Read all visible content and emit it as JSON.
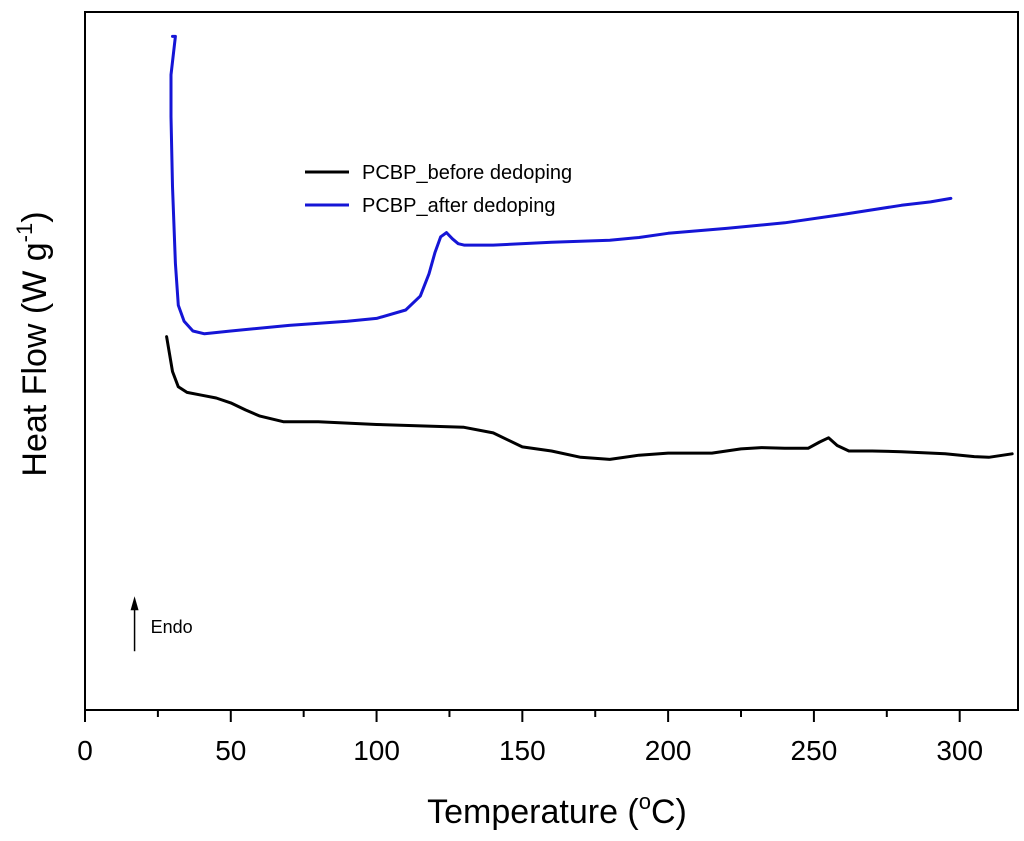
{
  "chart_data": {
    "type": "line",
    "title": "",
    "xlabel": "Temperature (",
    "xlabel_sup": "o",
    "xlabel_tail": "C)",
    "ylabel": "Heat Flow (W g",
    "ylabel_sup": "-1",
    "ylabel_tail": ")",
    "xlim": [
      0,
      320
    ],
    "ylim": [
      0,
      100
    ],
    "xticks": [
      0,
      50,
      100,
      150,
      200,
      250,
      300
    ],
    "y_tick_labels_shown": false,
    "grid": false,
    "legend_position": "upper-center",
    "annotation": {
      "text": "Endo",
      "x": 17,
      "y": 12,
      "arrow": "up"
    },
    "series": [
      {
        "name": "PCBP_before dedoping",
        "color": "#000000",
        "x": [
          28,
          30,
          32,
          35,
          40,
          45,
          50,
          55,
          60,
          68,
          80,
          100,
          130,
          140,
          150,
          160,
          170,
          180,
          190,
          200,
          215,
          225,
          232,
          240,
          248,
          252,
          255,
          258,
          262,
          270,
          280,
          295,
          305,
          310,
          318
        ],
        "y": [
          53.5,
          48.5,
          46.3,
          45.5,
          45.1,
          44.7,
          44.0,
          43.0,
          42.1,
          41.3,
          41.3,
          40.9,
          40.5,
          39.7,
          37.7,
          37.1,
          36.2,
          35.9,
          36.5,
          36.8,
          36.8,
          37.4,
          37.6,
          37.5,
          37.5,
          38.4,
          39.0,
          37.9,
          37.1,
          37.1,
          37.0,
          36.7,
          36.3,
          36.2,
          36.7
        ]
      },
      {
        "name": "PCBP_after dedoping",
        "color": "#1515d6",
        "x": [
          30,
          31,
          29.5,
          29.5,
          30,
          31,
          32,
          34,
          37,
          41,
          50,
          70,
          90,
          100,
          110,
          115,
          118,
          120,
          122,
          124,
          126,
          128,
          130,
          140,
          160,
          180,
          190,
          200,
          220,
          240,
          260,
          280,
          290,
          297
        ],
        "y": [
          96.5,
          96.5,
          91.0,
          85.0,
          75.0,
          64.0,
          58.0,
          55.7,
          54.3,
          53.9,
          54.3,
          55.1,
          55.7,
          56.1,
          57.3,
          59.3,
          62.5,
          65.5,
          67.8,
          68.4,
          67.5,
          66.8,
          66.6,
          66.6,
          67.0,
          67.3,
          67.7,
          68.3,
          69.0,
          69.8,
          71.0,
          72.3,
          72.8,
          73.3
        ]
      }
    ]
  }
}
